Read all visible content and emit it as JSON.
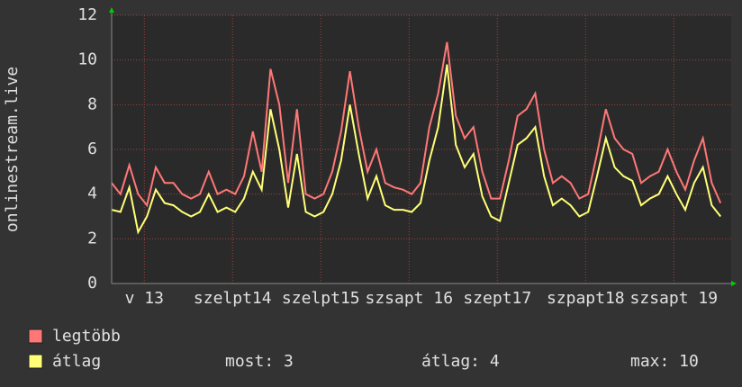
{
  "chart_data": {
    "type": "line",
    "y_label": "onlinestream.live",
    "x": [
      12.63,
      12.73,
      12.83,
      12.93,
      13.03,
      13.13,
      13.23,
      13.33,
      13.43,
      13.53,
      13.63,
      13.73,
      13.83,
      13.93,
      14.03,
      14.13,
      14.23,
      14.33,
      14.43,
      14.53,
      14.63,
      14.73,
      14.83,
      14.93,
      15.03,
      15.13,
      15.23,
      15.33,
      15.43,
      15.53,
      15.63,
      15.73,
      15.83,
      15.93,
      16.03,
      16.13,
      16.23,
      16.33,
      16.43,
      16.53,
      16.63,
      16.73,
      16.83,
      16.93,
      17.03,
      17.13,
      17.23,
      17.33,
      17.43,
      17.53,
      17.63,
      17.73,
      17.83,
      17.93,
      18.03,
      18.13,
      18.23,
      18.33,
      18.43,
      18.53,
      18.63,
      18.73,
      18.83,
      18.93,
      19.03,
      19.13,
      19.23,
      19.33,
      19.43,
      19.53
    ],
    "series": [
      {
        "name": "legtöbb",
        "color": "#ff7777",
        "values": [
          4.5,
          4.0,
          5.3,
          4.0,
          3.5,
          5.2,
          4.5,
          4.5,
          4.0,
          3.8,
          4.0,
          5.0,
          4.0,
          4.2,
          4.0,
          4.8,
          6.8,
          5.0,
          9.6,
          8.0,
          4.5,
          7.8,
          4.0,
          3.8,
          4.0,
          5.0,
          6.8,
          9.5,
          7.0,
          5.0,
          6.0,
          4.5,
          4.3,
          4.2,
          4.0,
          4.5,
          7.0,
          8.5,
          10.8,
          7.5,
          6.5,
          7.0,
          5.0,
          3.8,
          3.8,
          5.5,
          7.5,
          7.8,
          8.5,
          6.0,
          4.5,
          4.8,
          4.5,
          3.8,
          4.0,
          5.8,
          7.8,
          6.5,
          6.0,
          5.8,
          4.5,
          4.8,
          5.0,
          6.0,
          5.0,
          4.2,
          5.5,
          6.5,
          4.5,
          3.6
        ]
      },
      {
        "name": "átlag",
        "color": "#ffff77",
        "values": [
          3.3,
          3.2,
          4.3,
          2.3,
          3.0,
          4.2,
          3.6,
          3.5,
          3.2,
          3.0,
          3.2,
          4.0,
          3.2,
          3.4,
          3.2,
          3.8,
          5.0,
          4.2,
          7.8,
          6.0,
          3.4,
          5.8,
          3.2,
          3.0,
          3.2,
          4.0,
          5.5,
          8.0,
          5.8,
          3.8,
          4.8,
          3.5,
          3.3,
          3.3,
          3.2,
          3.6,
          5.5,
          7.0,
          9.8,
          6.2,
          5.2,
          5.8,
          3.9,
          3.0,
          2.8,
          4.5,
          6.2,
          6.5,
          7.0,
          4.8,
          3.5,
          3.8,
          3.5,
          3.0,
          3.2,
          4.8,
          6.5,
          5.2,
          4.8,
          4.6,
          3.5,
          3.8,
          4.0,
          4.8,
          4.0,
          3.3,
          4.5,
          5.2,
          3.5,
          3.0
        ]
      }
    ],
    "stats": [
      "most: 3",
      "átlag: 4",
      "max: 10"
    ],
    "xlim": [
      12.63,
      19.65
    ],
    "xticks": [
      {
        "value": 13,
        "label": "v 13"
      },
      {
        "value": 14,
        "label": "szelpt14"
      },
      {
        "value": 15,
        "label": "szelpt15"
      },
      {
        "value": 16,
        "label": "szsapt 16"
      },
      {
        "value": 17,
        "label": "szept17"
      },
      {
        "value": 18,
        "label": "szpapt18"
      },
      {
        "value": 19,
        "label": "szsapt 19"
      }
    ],
    "ylim": [
      0,
      12
    ],
    "yticks": [
      0,
      2,
      4,
      6,
      8,
      10,
      12
    ],
    "grid": true
  }
}
